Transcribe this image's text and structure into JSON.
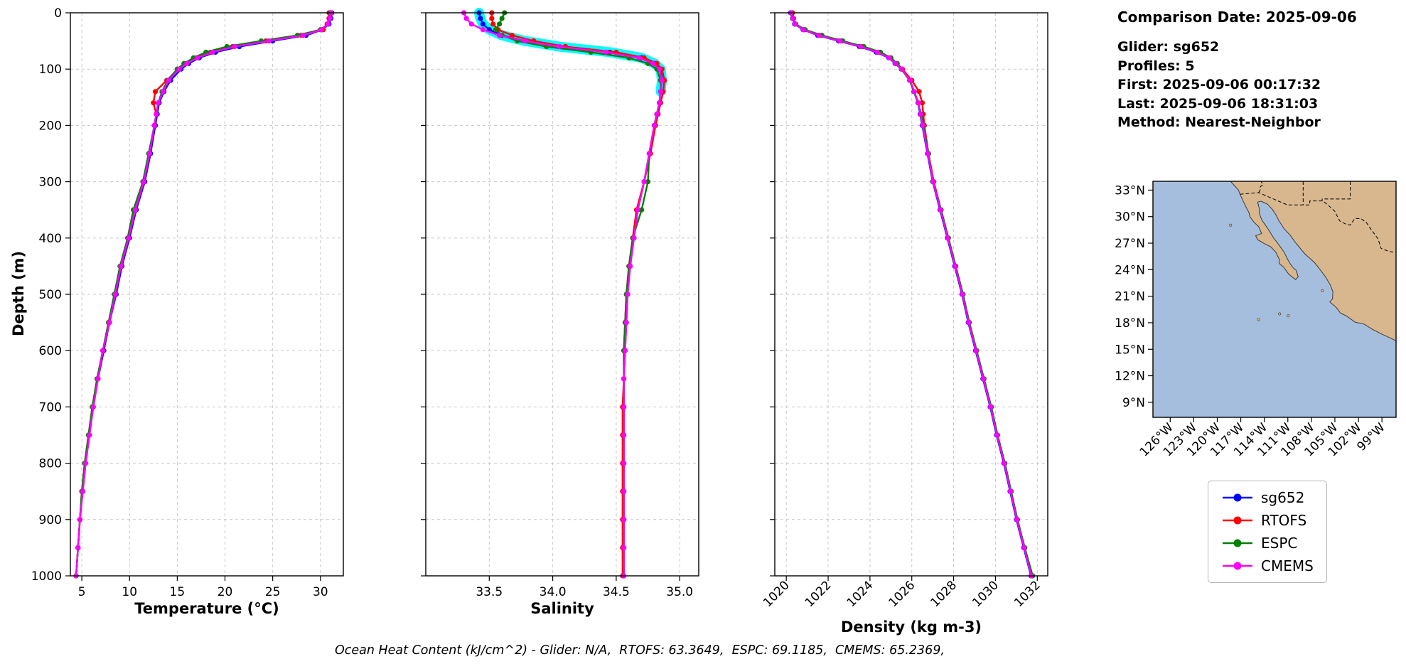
{
  "info_panel": {
    "title": "Comparison Date: 2025-09-06",
    "lines": [
      "Glider: sg652",
      "Profiles: 5",
      "First: 2025-09-06 00:17:32",
      "Last: 2025-09-06 18:31:03",
      "Method: Nearest-Neighbor"
    ]
  },
  "footer": {
    "ohc_text": "Ocean Heat Content (kJ/cm^2) - Glider: N/A,  RTOFS: 63.3649,  ESPC: 69.1185,  CMEMS: 65.2369,"
  },
  "legend": {
    "entries": [
      {
        "label": "sg652",
        "color": "#0000ff"
      },
      {
        "label": "RTOFS",
        "color": "#ff0000"
      },
      {
        "label": "ESPC",
        "color": "#008000"
      },
      {
        "label": "CMEMS",
        "color": "#ff00ff"
      }
    ]
  },
  "chart_data": [
    {
      "type": "line",
      "xlabel": "Temperature (°C)",
      "ylabel": "Depth (m)",
      "xlim": [
        3.8,
        32.4
      ],
      "ylim": [
        1000,
        0
      ],
      "xticks": [
        5,
        10,
        15,
        20,
        25,
        30
      ],
      "xtick_labels": [
        "5",
        "10",
        "15",
        "20",
        "25",
        "30"
      ],
      "yticks": [
        0,
        100,
        200,
        300,
        400,
        500,
        600,
        700,
        800,
        900,
        1000
      ],
      "show_yticklabels": true,
      "rotate_xticks": false,
      "grid": true,
      "depths": [
        0,
        10,
        20,
        30,
        40,
        50,
        60,
        70,
        80,
        90,
        100,
        120,
        140,
        160,
        180,
        200,
        250,
        300,
        350,
        400,
        450,
        500,
        550,
        600,
        650,
        700,
        750,
        800,
        850,
        900,
        950,
        1000
      ],
      "series": [
        {
          "name": "sg652",
          "color": "#0000ff",
          "values": [
            31.2,
            31.1,
            30.9,
            30.2,
            28.5,
            25.0,
            21.5,
            19.0,
            17.3,
            16.2,
            15.4,
            14.3,
            13.6,
            13.1,
            12.9,
            12.7,
            12.2,
            11.6,
            10.7,
            10.0,
            9.2,
            8.6,
            7.9,
            7.3,
            6.7,
            6.2,
            5.8,
            5.4,
            5.1,
            4.8,
            4.6,
            4.4
          ]
        },
        {
          "name": "RTOFS",
          "color": "#ff0000",
          "values": [
            30.9,
            30.9,
            30.7,
            30.3,
            28.0,
            24.3,
            20.8,
            18.5,
            17.0,
            15.9,
            15.1,
            13.9,
            12.7,
            12.5,
            12.8,
            12.6,
            12.1,
            11.5,
            10.6,
            9.9,
            9.1,
            8.5,
            7.8,
            7.2,
            6.6,
            6.1,
            5.7,
            5.3,
            5.0,
            4.8,
            4.6,
            4.4
          ]
        },
        {
          "name": "ESPC",
          "color": "#008000",
          "values": [
            31.0,
            31.0,
            30.8,
            30.0,
            27.6,
            23.8,
            20.2,
            18.0,
            16.7,
            15.7,
            15.0,
            14.0,
            13.4,
            13.0,
            12.8,
            12.6,
            12.0,
            11.4,
            10.4,
            9.8,
            9.0,
            8.4,
            7.8,
            7.2,
            6.6,
            6.1,
            5.7,
            5.3,
            5.0,
            4.8,
            4.6,
            4.4
          ]
        },
        {
          "name": "CMEMS",
          "color": "#ff00ff",
          "values": [
            31.1,
            31.0,
            30.8,
            30.1,
            28.2,
            24.6,
            21.0,
            18.7,
            17.1,
            16.0,
            15.2,
            14.1,
            13.5,
            13.0,
            12.8,
            12.6,
            12.1,
            11.5,
            10.6,
            9.9,
            9.1,
            8.5,
            7.9,
            7.2,
            6.7,
            6.2,
            5.8,
            5.4,
            5.1,
            4.8,
            4.6,
            4.4
          ]
        }
      ]
    },
    {
      "type": "line",
      "xlabel": "Salinity",
      "ylabel": "",
      "xlim": [
        33.0,
        35.15
      ],
      "ylim": [
        1000,
        0
      ],
      "xticks": [
        33.5,
        34.0,
        34.5,
        35.0
      ],
      "xtick_labels": [
        "33.5",
        "34.0",
        "34.5",
        "35.0"
      ],
      "yticks": [
        0,
        100,
        200,
        300,
        400,
        500,
        600,
        700,
        800,
        900,
        1000
      ],
      "show_yticklabels": false,
      "rotate_xticks": false,
      "grid": true,
      "depths": [
        0,
        10,
        20,
        30,
        40,
        50,
        60,
        70,
        80,
        90,
        100,
        120,
        140,
        160,
        180,
        200,
        250,
        300,
        350,
        400,
        450,
        500,
        550,
        600,
        650,
        700,
        750,
        800,
        850,
        900,
        950,
        1000
      ],
      "band": {
        "color": "#00ffff",
        "width": 14,
        "depths": [
          0,
          10,
          20,
          30,
          40,
          50,
          60,
          70,
          80,
          90,
          100,
          120,
          140
        ],
        "values": [
          33.42,
          33.43,
          33.45,
          33.5,
          33.6,
          33.78,
          34.05,
          34.45,
          34.7,
          34.8,
          34.85,
          34.86,
          34.85
        ]
      },
      "series": [
        {
          "name": "sg652",
          "color": "#0000ff",
          "values": [
            33.42,
            33.43,
            33.45,
            33.5,
            33.6,
            33.78,
            34.05,
            34.45,
            34.7,
            34.8,
            34.85,
            34.86,
            34.85,
            34.84,
            34.82,
            34.8,
            34.76,
            34.72,
            34.67,
            34.64,
            34.61,
            34.59,
            34.58,
            34.57,
            34.56,
            34.56,
            34.56,
            34.56,
            34.56,
            34.56,
            34.56,
            34.56
          ]
        },
        {
          "name": "RTOFS",
          "color": "#ff0000",
          "values": [
            33.52,
            33.52,
            33.53,
            33.57,
            33.68,
            33.85,
            34.1,
            34.5,
            34.72,
            34.82,
            34.86,
            34.88,
            34.87,
            34.85,
            34.83,
            34.81,
            34.77,
            34.72,
            34.66,
            34.63,
            34.6,
            34.58,
            34.57,
            34.56,
            34.56,
            34.55,
            34.55,
            34.55,
            34.55,
            34.55,
            34.55,
            34.55
          ]
        },
        {
          "name": "ESPC",
          "color": "#008000",
          "values": [
            33.62,
            33.6,
            33.58,
            33.55,
            33.6,
            33.72,
            33.95,
            34.3,
            34.6,
            34.75,
            34.82,
            34.85,
            34.85,
            34.84,
            34.82,
            34.8,
            34.76,
            34.75,
            34.7,
            34.63,
            34.6,
            34.58,
            34.57,
            34.56,
            34.56,
            34.56,
            34.56,
            34.56,
            34.56,
            34.56,
            34.56,
            34.56
          ]
        },
        {
          "name": "CMEMS",
          "color": "#ff00ff",
          "values": [
            33.3,
            33.32,
            33.36,
            33.45,
            33.58,
            33.78,
            34.05,
            34.42,
            34.68,
            34.79,
            34.84,
            34.86,
            34.85,
            34.84,
            34.82,
            34.8,
            34.76,
            34.72,
            34.67,
            34.64,
            34.61,
            34.59,
            34.58,
            34.57,
            34.56,
            34.56,
            34.56,
            34.56,
            34.56,
            34.56,
            34.56,
            34.56
          ]
        }
      ]
    },
    {
      "type": "line",
      "xlabel": "Density (kg m-3)",
      "ylabel": "",
      "xlim": [
        1019.45,
        1032.5
      ],
      "ylim": [
        1000,
        0
      ],
      "xticks": [
        1020,
        1022,
        1024,
        1026,
        1028,
        1030,
        1032
      ],
      "xtick_labels": [
        "1020",
        "1022",
        "1024",
        "1026",
        "1028",
        "1030",
        "1032"
      ],
      "yticks": [
        0,
        100,
        200,
        300,
        400,
        500,
        600,
        700,
        800,
        900,
        1000
      ],
      "show_yticklabels": false,
      "rotate_xticks": true,
      "grid": true,
      "depths": [
        0,
        10,
        20,
        30,
        40,
        50,
        60,
        70,
        80,
        90,
        100,
        120,
        140,
        160,
        180,
        200,
        250,
        300,
        350,
        400,
        450,
        500,
        550,
        600,
        650,
        700,
        750,
        800,
        850,
        900,
        950,
        1000
      ],
      "series": [
        {
          "name": "sg652",
          "color": "#0000ff",
          "values": [
            1020.2,
            1020.3,
            1020.4,
            1020.8,
            1021.5,
            1022.5,
            1023.5,
            1024.3,
            1024.9,
            1025.2,
            1025.5,
            1025.9,
            1026.1,
            1026.3,
            1026.4,
            1026.5,
            1026.75,
            1027.0,
            1027.35,
            1027.7,
            1028.05,
            1028.4,
            1028.7,
            1029.05,
            1029.4,
            1029.75,
            1030.05,
            1030.4,
            1030.7,
            1031.0,
            1031.35,
            1031.7
          ]
        },
        {
          "name": "RTOFS",
          "color": "#ff0000",
          "values": [
            1020.3,
            1020.35,
            1020.45,
            1020.85,
            1021.6,
            1022.6,
            1023.6,
            1024.4,
            1025.0,
            1025.3,
            1025.55,
            1026.0,
            1026.35,
            1026.5,
            1026.55,
            1026.6,
            1026.8,
            1027.05,
            1027.4,
            1027.75,
            1028.1,
            1028.45,
            1028.75,
            1029.1,
            1029.45,
            1029.8,
            1030.1,
            1030.45,
            1030.75,
            1031.05,
            1031.4,
            1031.75
          ]
        },
        {
          "name": "ESPC",
          "color": "#008000",
          "values": [
            1020.25,
            1020.3,
            1020.45,
            1020.9,
            1021.7,
            1022.7,
            1023.7,
            1024.5,
            1025.0,
            1025.3,
            1025.5,
            1025.9,
            1026.1,
            1026.3,
            1026.45,
            1026.55,
            1026.8,
            1027.0,
            1027.4,
            1027.75,
            1028.1,
            1028.45,
            1028.75,
            1029.1,
            1029.45,
            1029.8,
            1030.1,
            1030.45,
            1030.75,
            1031.05,
            1031.4,
            1031.78
          ]
        },
        {
          "name": "CMEMS",
          "color": "#ff00ff",
          "values": [
            1020.22,
            1020.32,
            1020.42,
            1020.82,
            1021.55,
            1022.55,
            1023.55,
            1024.35,
            1024.92,
            1025.22,
            1025.52,
            1025.92,
            1026.12,
            1026.32,
            1026.42,
            1026.52,
            1026.77,
            1027.02,
            1027.37,
            1027.72,
            1028.07,
            1028.42,
            1028.72,
            1029.07,
            1029.42,
            1029.77,
            1030.07,
            1030.42,
            1030.72,
            1031.02,
            1031.37,
            1031.72
          ]
        }
      ]
    }
  ],
  "map": {
    "extent": {
      "lon_min": -128.2,
      "lon_max": -97.2,
      "lat_min": 7.3,
      "lat_max": 34.0
    },
    "ocean_color": "#a6bedd",
    "land_color": "#d8b78e",
    "coast_color": "#3a3a3a",
    "border_color": "#000000",
    "lat_ticks": [
      9,
      12,
      15,
      18,
      21,
      24,
      27,
      30,
      33
    ],
    "lat_labels": [
      "9°N",
      "12°N",
      "15°N",
      "18°N",
      "21°N",
      "24°N",
      "27°N",
      "30°N",
      "33°N"
    ],
    "lon_ticks": [
      -126,
      -123,
      -120,
      -117,
      -114,
      -111,
      -108,
      -105,
      -102,
      -99
    ],
    "lon_labels": [
      "126°W",
      "123°W",
      "120°W",
      "117°W",
      "114°W",
      "111°W",
      "108°W",
      "105°W",
      "102°W",
      "99°W"
    ],
    "land": [
      [
        -118.3,
        34.0
      ],
      [
        -117.9,
        33.6
      ],
      [
        -117.3,
        33.0
      ],
      [
        -117.1,
        32.54
      ],
      [
        -116.88,
        32.1
      ],
      [
        -116.62,
        31.6
      ],
      [
        -116.28,
        31.0
      ],
      [
        -115.95,
        30.45
      ],
      [
        -115.8,
        29.95
      ],
      [
        -115.35,
        29.4
      ],
      [
        -114.7,
        28.85
      ],
      [
        -114.35,
        28.1
      ],
      [
        -114.75,
        27.95
      ],
      [
        -115.1,
        27.85
      ],
      [
        -114.85,
        27.4
      ],
      [
        -114.0,
        26.95
      ],
      [
        -113.2,
        26.6
      ],
      [
        -112.55,
        26.0
      ],
      [
        -112.1,
        25.2
      ],
      [
        -112.1,
        24.7
      ],
      [
        -111.55,
        24.3
      ],
      [
        -110.85,
        23.45
      ],
      [
        -110.0,
        22.88
      ],
      [
        -109.68,
        23.2
      ],
      [
        -109.95,
        23.95
      ],
      [
        -110.3,
        24.2
      ],
      [
        -110.65,
        24.6
      ],
      [
        -111.05,
        25.2
      ],
      [
        -111.45,
        25.95
      ],
      [
        -112.05,
        26.7
      ],
      [
        -112.85,
        27.65
      ],
      [
        -113.55,
        28.65
      ],
      [
        -114.3,
        29.6
      ],
      [
        -114.6,
        30.3
      ],
      [
        -114.65,
        30.95
      ],
      [
        -114.85,
        31.65
      ],
      [
        -114.4,
        31.75
      ],
      [
        -113.6,
        31.4
      ],
      [
        -113.0,
        30.85
      ],
      [
        -112.55,
        30.25
      ],
      [
        -112.15,
        29.55
      ],
      [
        -111.45,
        28.6
      ],
      [
        -110.7,
        27.9
      ],
      [
        -110.05,
        27.1
      ],
      [
        -109.4,
        26.4
      ],
      [
        -108.85,
        25.8
      ],
      [
        -108.15,
        25.25
      ],
      [
        -107.5,
        24.7
      ],
      [
        -106.8,
        23.9
      ],
      [
        -106.2,
        23.2
      ],
      [
        -105.6,
        22.3
      ],
      [
        -105.25,
        21.5
      ],
      [
        -105.3,
        20.7
      ],
      [
        -105.65,
        20.35
      ],
      [
        -104.8,
        19.7
      ],
      [
        -104.3,
        19.1
      ],
      [
        -103.5,
        18.75
      ],
      [
        -102.4,
        18.05
      ],
      [
        -101.3,
        17.85
      ],
      [
        -100.2,
        17.25
      ],
      [
        -99.0,
        16.7
      ],
      [
        -98.0,
        16.3
      ],
      [
        -97.2,
        15.95
      ],
      [
        -97.2,
        34.0
      ]
    ],
    "islands": [
      [
        -106.6,
        21.6
      ],
      [
        -110.95,
        18.78
      ],
      [
        -112.05,
        19.0
      ],
      [
        -114.73,
        18.36
      ],
      [
        -118.3,
        29.03
      ]
    ],
    "borders": [
      [
        [
          -117.1,
          32.54
        ],
        [
          -114.72,
          32.72
        ],
        [
          -111.07,
          31.33
        ],
        [
          -108.2,
          31.33
        ],
        [
          -108.2,
          31.78
        ],
        [
          -106.53,
          31.78
        ],
        [
          -105.6,
          31.1
        ],
        [
          -105.0,
          30.6
        ],
        [
          -104.55,
          29.8
        ],
        [
          -104.35,
          29.5
        ],
        [
          -103.6,
          29.15
        ],
        [
          -103.05,
          29.05
        ],
        [
          -102.45,
          29.8
        ],
        [
          -101.65,
          29.77
        ],
        [
          -101.0,
          29.35
        ],
        [
          -100.3,
          28.45
        ],
        [
          -99.5,
          27.5
        ],
        [
          -99.1,
          26.4
        ],
        [
          -98.1,
          26.06
        ],
        [
          -97.2,
          25.95
        ]
      ],
      [
        [
          -109.05,
          34.0
        ],
        [
          -109.05,
          31.33
        ]
      ],
      [
        [
          -103.05,
          34.0
        ],
        [
          -103.05,
          32.0
        ],
        [
          -106.62,
          32.0
        ],
        [
          -106.62,
          31.8
        ]
      ],
      [
        [
          -114.72,
          32.72
        ],
        [
          -114.5,
          33.05
        ],
        [
          -114.53,
          33.35
        ],
        [
          -114.15,
          33.65
        ],
        [
          -114.45,
          34.0
        ]
      ]
    ]
  }
}
